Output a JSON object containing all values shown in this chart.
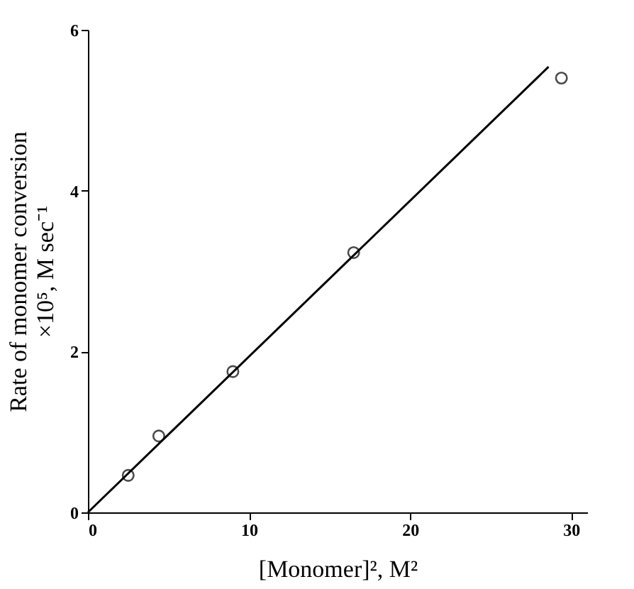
{
  "chart_data": {
    "type": "scatter",
    "xlabel": "[Monomer]², M²",
    "ylabel": "Rate of monomer conversion\n×10⁵, M sec⁻¹",
    "xlim": [
      0,
      31
    ],
    "ylim": [
      0,
      6
    ],
    "xticks": [
      0,
      10,
      20,
      30
    ],
    "yticks": [
      0,
      2,
      4,
      6
    ],
    "grid": false,
    "series": [
      {
        "marker": "circle",
        "color": "#000000",
        "x": [
          2.5,
          4.4,
          9.0,
          16.5,
          29.4
        ],
        "values": [
          0.46,
          0.95,
          1.75,
          3.23,
          5.4
        ]
      },
      {
        "type": "line",
        "marker": "none",
        "line_style": "solid",
        "color": "#000000",
        "x": [
          0,
          28.6
        ],
        "values": [
          0,
          5.54
        ]
      }
    ]
  }
}
